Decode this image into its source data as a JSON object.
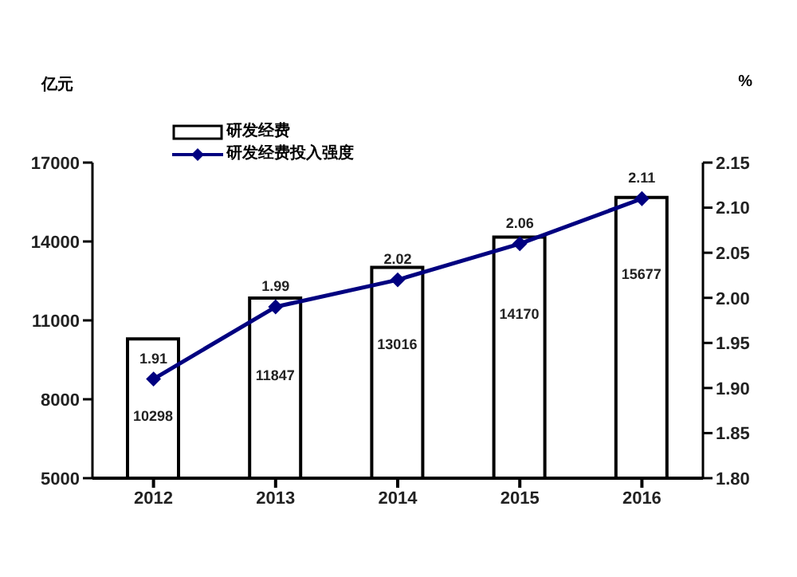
{
  "chart_data": {
    "type": "bar",
    "ylabel": "亿元",
    "y2label": "%",
    "categories": [
      "2012",
      "2013",
      "2014",
      "2015",
      "2016"
    ],
    "series": [
      {
        "name": "研发经费",
        "color": "#ffffff",
        "values": [
          10298,
          11847,
          13016,
          14170,
          15677
        ]
      },
      {
        "name": "研发经费投入强度",
        "type": "line",
        "axis": "y2",
        "color": "#000080",
        "values": [
          1.91,
          1.99,
          2.02,
          2.06,
          2.11
        ]
      }
    ],
    "ylim": [
      5000,
      17000
    ],
    "yticks": [
      5000,
      8000,
      11000,
      14000,
      17000
    ],
    "y2lim": [
      1.8,
      2.15
    ],
    "y2ticks": [
      {
        "value": 1.8,
        "label": "1.80"
      },
      {
        "value": 1.85,
        "label": "1.85"
      },
      {
        "value": 1.9,
        "label": "1.90"
      },
      {
        "value": 1.95,
        "label": "1.95"
      },
      {
        "value": 2.0,
        "label": "2.00"
      },
      {
        "value": 2.05,
        "label": "2.05"
      },
      {
        "value": 2.1,
        "label": "2.10"
      },
      {
        "value": 2.15,
        "label": "2.15"
      }
    ],
    "data_labels": true,
    "grid": false,
    "legend": "top left",
    "marker": "diamond",
    "line_style": "solid"
  }
}
